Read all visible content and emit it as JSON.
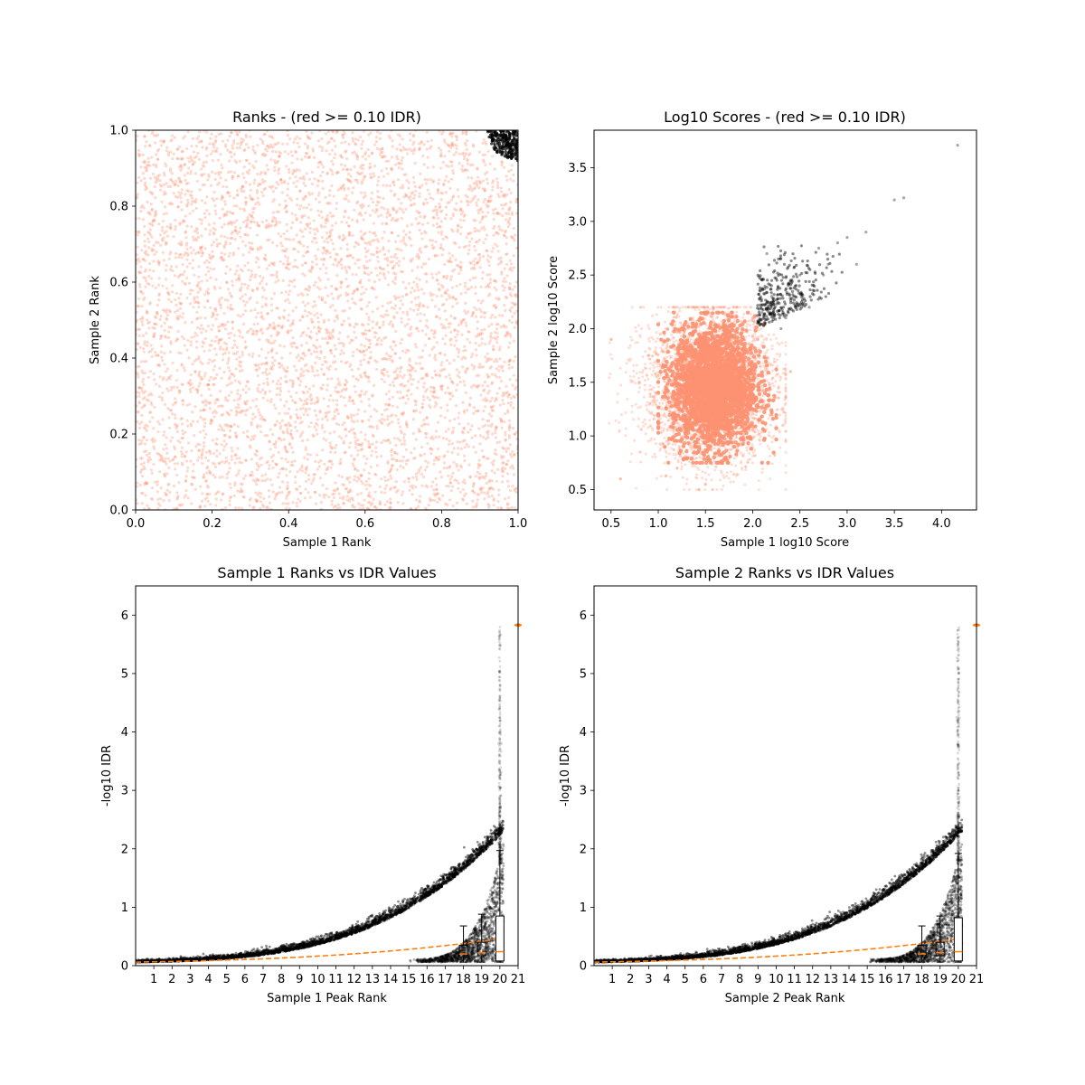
{
  "chart_data": [
    {
      "type": "scatter",
      "title": "Ranks - (red >= 0.10 IDR)",
      "xlabel": "Sample 1 Rank",
      "ylabel": "Sample 2 Rank",
      "xlim": [
        0.0,
        1.0
      ],
      "ylim": [
        0.0,
        1.0
      ],
      "xticks": [
        "0.0",
        "0.2",
        "0.4",
        "0.6",
        "0.8",
        "1.0"
      ],
      "yticks": [
        "0.0",
        "0.2",
        "0.4",
        "0.6",
        "0.8",
        "1.0"
      ],
      "grid": false,
      "series": [
        {
          "color": "#fc9272",
          "description_of_distribution": "uniform",
          "x": [
            0.03,
            0.11,
            0.19,
            0.27,
            0.35,
            0.43,
            0.51,
            0.59,
            0.67,
            0.75,
            0.83,
            0.91,
            0.05,
            0.15,
            0.25,
            0.45,
            0.65,
            0.85,
            0.08,
            0.38,
            0.58,
            0.78,
            0.97,
            0.02
          ],
          "y": [
            0.07,
            0.95,
            0.33,
            0.61,
            0.18,
            0.84,
            0.42,
            0.09,
            0.73,
            0.27,
            0.56,
            0.14,
            0.49,
            0.91,
            0.22,
            0.68,
            0.37,
            0.79,
            0.04,
            0.87,
            0.58,
            0.31,
            0.12,
            0.66
          ]
        },
        {
          "color": "#000000",
          "x": [
            0.93,
            0.95,
            0.97,
            0.99,
            0.96,
            0.98,
            0.94,
            1.0
          ],
          "y": [
            1.0,
            0.98,
            0.97,
            0.99,
            1.0,
            0.95,
            0.99,
            0.93
          ]
        }
      ]
    },
    {
      "type": "scatter",
      "title": "Log10 Scores - (red >= 0.10 IDR)",
      "xlabel": "Sample 1 log10 Score",
      "ylabel": "Sample 2 log10 Score",
      "xlim": [
        0.32,
        4.37
      ],
      "ylim": [
        0.31,
        3.85
      ],
      "xticks": [
        0.5,
        1.0,
        1.5,
        2.0,
        2.5,
        3.0,
        3.5,
        4.0
      ],
      "yticks": [
        0.5,
        1.0,
        1.5,
        2.0,
        2.5,
        3.0,
        3.5
      ],
      "grid": false,
      "series": [
        {
          "color": "#fc9272",
          "x": [
            0.5,
            0.8,
            1.0,
            1.2,
            1.4,
            1.6,
            1.8,
            2.0,
            2.1,
            0.6,
            1.1,
            1.5,
            1.9,
            2.2,
            2.4,
            1.3,
            1.7,
            0.9,
            2.05,
            1.55
          ],
          "y": [
            1.9,
            1.5,
            1.1,
            0.7,
            1.8,
            1.3,
            0.9,
            2.1,
            1.5,
            0.6,
            2.0,
            0.55,
            1.7,
            1.2,
            1.6,
            1.4,
            1.0,
            1.75,
            1.9,
            2.05
          ]
        },
        {
          "color": "#000000",
          "x": [
            2.05,
            2.1,
            2.2,
            2.3,
            2.4,
            2.5,
            2.6,
            2.7,
            2.8,
            2.9,
            3.0,
            3.1,
            3.2,
            3.5,
            3.6,
            4.17,
            2.15,
            2.45,
            2.75,
            2.35
          ],
          "y": [
            2.05,
            2.15,
            2.3,
            2.0,
            2.45,
            2.5,
            2.2,
            2.75,
            2.6,
            2.8,
            2.85,
            2.6,
            2.9,
            3.2,
            3.22,
            3.71,
            2.7,
            2.3,
            2.5,
            2.1
          ]
        }
      ]
    },
    {
      "type": "scatter",
      "title": "Sample 1 Ranks vs IDR Values",
      "xlabel": "Sample 1 Peak Rank",
      "ylabel": "-log10 IDR",
      "xlim": [
        0,
        21
      ],
      "ylim": [
        0,
        6.5
      ],
      "xticks": [
        "1",
        "2",
        "3",
        "4",
        "5",
        "6",
        "7",
        "8",
        "9",
        "10",
        "11",
        "12",
        "13",
        "14",
        "15",
        "16",
        "17",
        "18",
        "19",
        "20",
        "21"
      ],
      "yticks": [
        0,
        1,
        2,
        3,
        4,
        5,
        6
      ],
      "grid": false,
      "scatter_color": "#000000",
      "box_values": [
        {
          "x": 18,
          "q1": 0.15,
          "median": 0.2,
          "q3": 0.35,
          "whisker_low": 0.06,
          "whisker_high": 0.68
        },
        {
          "x": 19,
          "q1": 0.17,
          "median": 0.22,
          "q3": 0.4,
          "whisker_low": 0.06,
          "whisker_high": 0.88
        },
        {
          "x": 20,
          "q1": 0.08,
          "median": 0.24,
          "q3": 0.85,
          "whisker_low": 0.06,
          "whisker_high": 1.97
        }
      ],
      "outlier_marker": {
        "x": 21,
        "y": 5.83,
        "color": "#ff7f0e"
      },
      "median_line_color": "#ff7f0e"
    },
    {
      "type": "scatter",
      "title": "Sample 2 Ranks vs IDR Values",
      "xlabel": "Sample 2 Peak Rank",
      "ylabel": "-log10 IDR",
      "xlim": [
        0,
        21
      ],
      "ylim": [
        0,
        6.5
      ],
      "xticks": [
        "1",
        "2",
        "3",
        "4",
        "5",
        "6",
        "7",
        "8",
        "9",
        "10",
        "11",
        "12",
        "13",
        "14",
        "15",
        "16",
        "17",
        "18",
        "19",
        "20",
        "21"
      ],
      "yticks": [
        0,
        1,
        2,
        3,
        4,
        5,
        6
      ],
      "grid": false,
      "scatter_color": "#000000",
      "box_values": [
        {
          "x": 18,
          "q1": 0.15,
          "median": 0.2,
          "q3": 0.35,
          "whisker_low": 0.06,
          "whisker_high": 0.68
        },
        {
          "x": 19,
          "q1": 0.17,
          "median": 0.22,
          "q3": 0.4,
          "whisker_low": 0.06,
          "whisker_high": 0.85
        },
        {
          "x": 20,
          "q1": 0.08,
          "median": 0.24,
          "q3": 0.82,
          "whisker_low": 0.06,
          "whisker_high": 1.92
        }
      ],
      "outlier_marker": {
        "x": 21,
        "y": 5.83,
        "color": "#ff7f0e"
      },
      "median_line_color": "#ff7f0e"
    }
  ]
}
